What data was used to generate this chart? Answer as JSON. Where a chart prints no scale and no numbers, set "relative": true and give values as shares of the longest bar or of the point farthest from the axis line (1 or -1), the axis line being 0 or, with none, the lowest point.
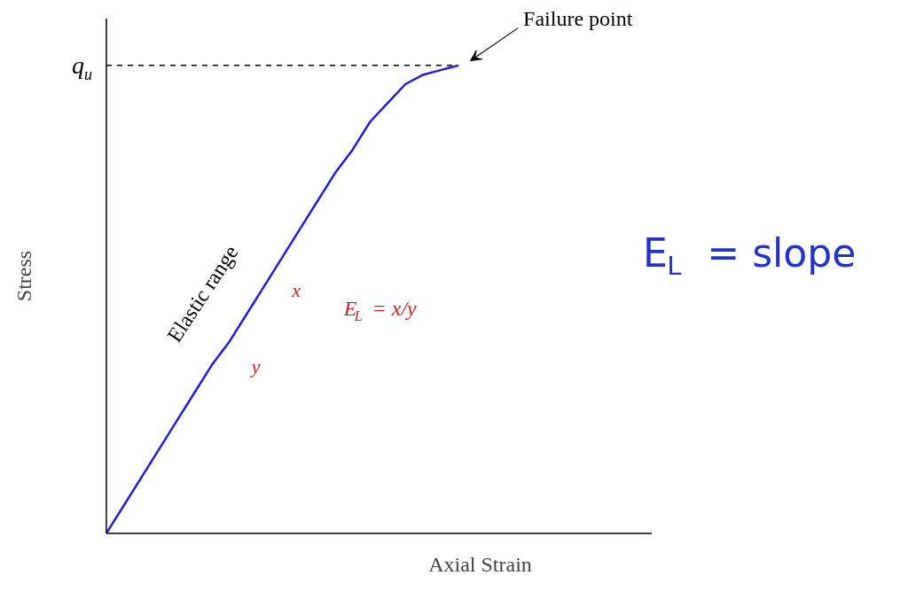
{
  "chart_data": {
    "type": "line",
    "relative": true,
    "xlabel": "Axial Strain",
    "ylabel": "Stress",
    "categories": [
      null,
      null,
      null,
      null,
      null,
      null,
      null,
      null,
      null,
      null,
      null,
      null,
      null,
      null,
      null,
      null,
      null,
      null,
      null,
      null,
      null,
      null,
      null,
      null,
      null,
      null,
      null,
      null,
      null,
      null,
      null
    ],
    "series": [
      {
        "color": "#1f1fd0",
        "values": [
          0,
          0.06,
          0.12,
          0.18,
          0.24,
          0.3,
          0.36,
          0.41,
          0.47,
          0.53,
          0.59,
          0.65,
          0.71,
          0.77,
          0.82,
          0.88,
          0.92,
          0.96,
          0.98,
          0.99,
          1.0,
          null,
          null,
          null,
          null,
          null,
          null,
          null,
          null,
          null,
          null
        ]
      }
    ],
    "ref_lines": [
      {
        "axis": "y",
        "value": 1.0,
        "label": "q$_{u}$",
        "line_style": "dashed",
        "color": "#000000"
      }
    ],
    "annotations": [
      "Failure point",
      "Elastic range",
      "x",
      "y",
      "E$_{L}$ = x/y",
      "E$_{L}$ = slope"
    ],
    "grid": false,
    "marker": "none",
    "line_style": "solid"
  }
}
